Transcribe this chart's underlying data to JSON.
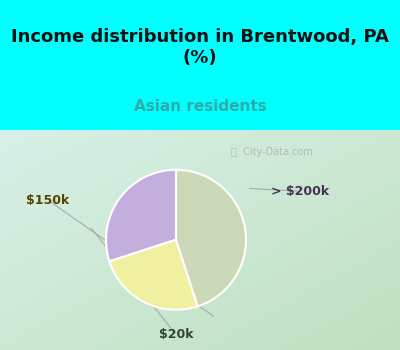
{
  "title": "Income distribution in Brentwood, PA\n(%)",
  "subtitle": "Asian residents",
  "slices": [
    {
      "label": "> $200k",
      "value": 30,
      "color": "#c4aede"
    },
    {
      "label": "$150k",
      "value": 25,
      "color": "#f0f0a0"
    },
    {
      "label": "$20k",
      "value": 45,
      "color": "#ccd9b8"
    }
  ],
  "title_fontsize": 13,
  "subtitle_fontsize": 11,
  "subtitle_color": "#33aaaa",
  "title_bg_color": "#00ffff",
  "label_fontsize": 9,
  "label_colors": [
    "#443355",
    "#554400",
    "#334433"
  ],
  "watermark": "City-Data.com",
  "start_angle": 90,
  "bg_top": "#cceee0",
  "bg_bottom": "#d8f0d0"
}
